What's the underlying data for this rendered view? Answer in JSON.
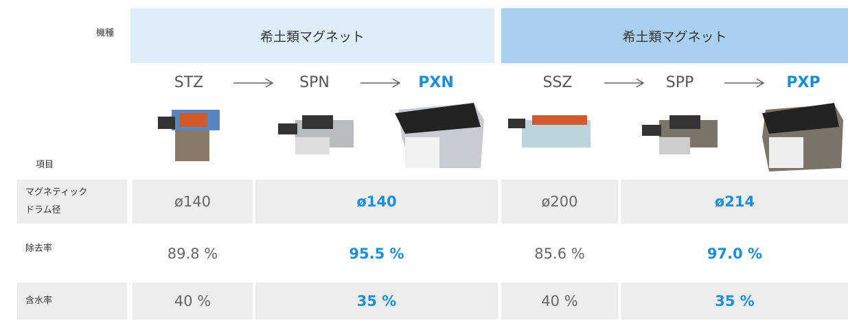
{
  "header": {
    "label": "機種",
    "groups": [
      "希土類マグネット",
      "希土類マグネット"
    ]
  },
  "models": [
    "STZ",
    "SPN",
    "PXN",
    "SSZ",
    "SPP",
    "PXP"
  ],
  "item_label": "項目",
  "rows": [
    {
      "label": [
        "マグネティック",
        "ドラム径"
      ],
      "cells": [
        "ø140",
        "ø140",
        "ø200",
        "ø214"
      ]
    },
    {
      "label": [
        "除去率"
      ],
      "cells": [
        "89.8 %",
        "95.5 %",
        "85.6 %",
        "97.0 %"
      ]
    },
    {
      "label": [
        "含水率"
      ],
      "cells": [
        "40 %",
        "35 %",
        "40 %",
        "35 %"
      ]
    }
  ]
}
